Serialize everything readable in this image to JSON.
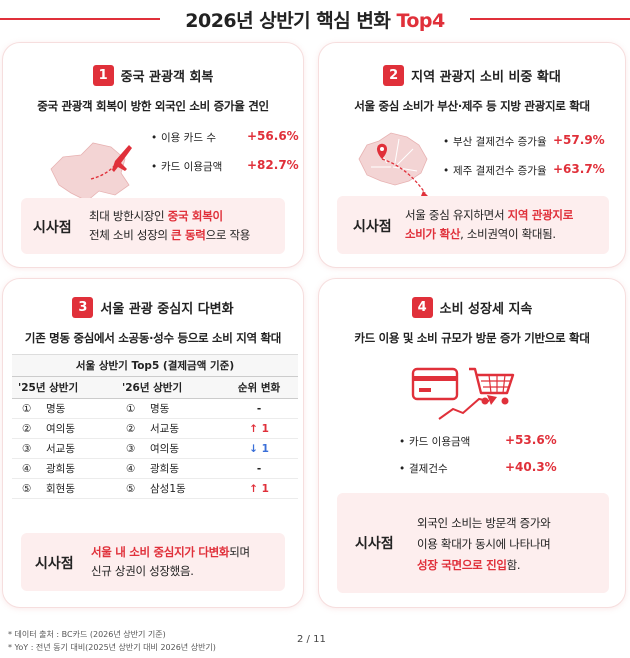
{
  "page": {
    "title_main": "2026년 상반기 핵심 변화 ",
    "title_accent": "Top4"
  },
  "cards": [
    {
      "num": "1",
      "heading": "중국 관광객 회복",
      "subtitle": "중국 관광객 회복이 방한 외국인 소비 증가율 견인",
      "stats": [
        {
          "label": "이용 카드 수",
          "value": "+56.6%"
        },
        {
          "label": "카드 이용금액",
          "value": "+82.7%"
        }
      ],
      "implication_label": "시사점",
      "implication": {
        "l1_a": "최대 방한시장인 ",
        "l1_hl": "중국 회복이",
        "l2_a": "전체 소비 성장의 ",
        "l2_hl": "큰 동력",
        "l2_b": "으로 작용"
      }
    },
    {
      "num": "2",
      "heading": "지역 관광지 소비 비중 확대",
      "subtitle": "서울 중심 소비가 부산·제주 등 지방 관광지로 확대",
      "stats": [
        {
          "label": "부산 결제건수 증가율",
          "value": "+57.9%"
        },
        {
          "label": "제주 결제건수 증가율",
          "value": "+63.7%"
        }
      ],
      "implication_label": "시사점",
      "implication": {
        "l1_a": "서울 중심 유지하면서 ",
        "l1_hl": "지역 관광지로",
        "l2_hl": "소비가 확산",
        "l2_b": ", 소비권역이 확대됨."
      }
    },
    {
      "num": "3",
      "heading": "서울 관광 중심지 다변화",
      "subtitle": "기존 명동 중심에서 소공동·성수 등으로 소비 지역 확대",
      "table": {
        "caption": "서울 상반기 Top5 (결제금액 기준)",
        "headers": [
          "'25년 상반기",
          "'26년 상반기",
          "순위 변화"
        ],
        "rows": [
          {
            "r1": "①",
            "n1": "명동",
            "r2": "①",
            "n2": "명동",
            "change": "-"
          },
          {
            "r1": "②",
            "n1": "여의동",
            "r2": "②",
            "n2": "서교동",
            "change": "↑ 1"
          },
          {
            "r1": "③",
            "n1": "서교동",
            "r2": "③",
            "n2": "여의동",
            "change": "↓ 1"
          },
          {
            "r1": "④",
            "n1": "광희동",
            "r2": "④",
            "n2": "광희동",
            "change": "-"
          },
          {
            "r1": "⑤",
            "n1": "회현동",
            "r2": "⑤",
            "n2": "삼성1동",
            "change": "↑ 1"
          }
        ]
      },
      "implication_label": "시사점",
      "implication": {
        "l1_hl": "서울 내 소비 중심지가 다변화",
        "l1_b": "되며",
        "l2_a": "신규 상권이 성장했음."
      }
    },
    {
      "num": "4",
      "heading": "소비 성장세 지속",
      "subtitle": "카드 이용 및 소비 규모가 방문 증가 기반으로 확대",
      "stats": [
        {
          "label": "카드 이용금액",
          "value": "+53.6%"
        },
        {
          "label": "결제건수",
          "value": "+40.3%"
        }
      ],
      "implication_label": "시사점",
      "implication": {
        "l1_a": "외국인 소비는 방문객 증가와",
        "l2_a": "이용 확대가  동시에 나타나며",
        "l3_hl": "성장 국면으로 진입",
        "l3_b": "함."
      }
    }
  ],
  "colors": {
    "accent": "#e0303a",
    "down": "#3a6fd8",
    "implication_bg": "#fdeeee"
  },
  "icons": [
    "china-map-icon",
    "china-flag-icon",
    "airplane-icon",
    "korea-map-icon",
    "location-pin-icon",
    "credit-card-icon",
    "shopping-cart-icon",
    "trend-arrow-icon"
  ],
  "footer": {
    "note1": "* 데이터 출처 : BC카드 (2026년 상반기 기준)",
    "note2": "* YoY : 전년 동기 대비(2025년 상반기 대비 2026년 상반기)",
    "page_num": "2 / 11"
  }
}
